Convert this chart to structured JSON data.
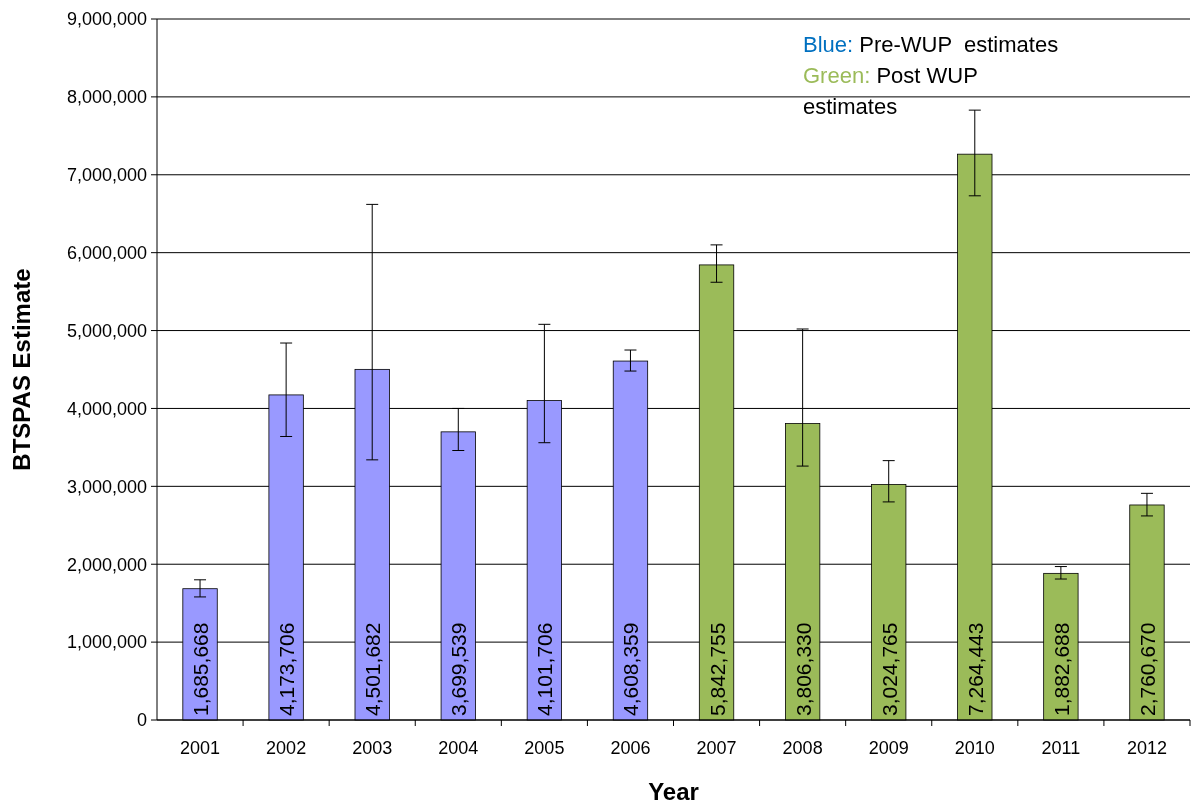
{
  "chart_data": {
    "type": "bar",
    "xlabel": "Year",
    "ylabel": "BTSPAS Estimate",
    "categories": [
      "2001",
      "2002",
      "2003",
      "2004",
      "2005",
      "2006",
      "2007",
      "2008",
      "2009",
      "2010",
      "2011",
      "2012"
    ],
    "series": [
      {
        "color": "#9999ff",
        "values": [
          1685668,
          4173706,
          4501682,
          3699539,
          4101706,
          4608359,
          null,
          null,
          null,
          null,
          null,
          null
        ],
        "value_labels": [
          "1,685,668",
          "4,173,706",
          "4,501,682",
          "3,699,539",
          "4,101,706",
          "4,608,359",
          null,
          null,
          null,
          null,
          null,
          null
        ],
        "errors": [
          [
            1580000,
            1800000
          ],
          [
            3640000,
            4840000
          ],
          [
            3340000,
            6620000
          ],
          [
            3460000,
            4000000
          ],
          [
            3560000,
            5080000
          ],
          [
            4480000,
            4750000
          ],
          null,
          null,
          null,
          null,
          null,
          null
        ]
      },
      {
        "color": "#9bbb59",
        "values": [
          null,
          null,
          null,
          null,
          null,
          null,
          5842755,
          3806330,
          3024765,
          7264443,
          1882688,
          2760670
        ],
        "value_labels": [
          null,
          null,
          null,
          null,
          null,
          null,
          "5,842,755",
          "3,806,330",
          "3,024,765",
          "7,264,443",
          "1,882,688",
          "2,760,670"
        ],
        "errors": [
          null,
          null,
          null,
          null,
          null,
          null,
          [
            5620000,
            6100000
          ],
          [
            3260000,
            5020000
          ],
          [
            2800000,
            3330000
          ],
          [
            6730000,
            7830000
          ],
          [
            1810000,
            1970000
          ],
          [
            2620000,
            2910000
          ]
        ]
      }
    ],
    "ylim": [
      0,
      9000000
    ],
    "yticks": [
      {
        "value": 0,
        "label": "0"
      },
      {
        "value": 1000000,
        "label": "1,000,000"
      },
      {
        "value": 2000000,
        "label": "2,000,000"
      },
      {
        "value": 3000000,
        "label": "3,000,000"
      },
      {
        "value": 4000000,
        "label": "4,000,000"
      },
      {
        "value": 5000000,
        "label": "5,000,000"
      },
      {
        "value": 6000000,
        "label": "6,000,000"
      },
      {
        "value": 7000000,
        "label": "7,000,000"
      },
      {
        "value": 8000000,
        "label": "8,000,000"
      },
      {
        "value": 9000000,
        "label": "9,000,000"
      }
    ],
    "grid": "y",
    "annotations": [
      "Blue: Pre-WUP  estimates",
      "Green: Post WUP estimates"
    ]
  }
}
